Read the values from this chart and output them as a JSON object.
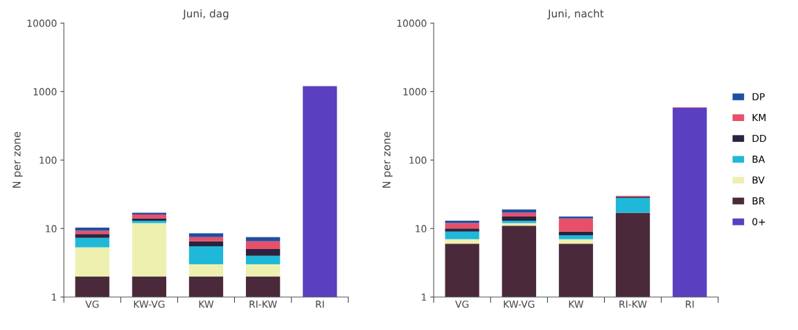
{
  "chart_data": [
    {
      "type": "bar",
      "title": "Juni, dag",
      "ylabel": "N per zone",
      "stacked": true,
      "log": "y",
      "grid": false,
      "categories": [
        "VG",
        "KW-VG",
        "KW",
        "RI-KW",
        "RI"
      ],
      "ylim": [
        1,
        10000
      ],
      "yticks": [
        1,
        10,
        100,
        1000,
        10000
      ],
      "series": [
        {
          "color": "#5a3fc0",
          "values": [
            null,
            null,
            null,
            null,
            1200
          ]
        },
        {
          "color": "#4a2a3a",
          "values": [
            2,
            2,
            2,
            2,
            null
          ]
        },
        {
          "color": "#eef0b0",
          "values": [
            3.3,
            10,
            1,
            1,
            null
          ]
        },
        {
          "color": "#20b8d8",
          "values": [
            2,
            1,
            2.5,
            1,
            null
          ]
        },
        {
          "color": "#2a2440",
          "values": [
            1,
            1,
            1,
            1,
            null
          ]
        },
        {
          "color": "#e8506a",
          "values": [
            1,
            2,
            1,
            1.5,
            null
          ]
        },
        {
          "color": "#1f4fa0",
          "values": [
            1,
            1,
            1,
            1,
            null
          ]
        }
      ]
    },
    {
      "type": "bar",
      "title": "Juni, nacht",
      "ylabel": "N per zone",
      "stacked": true,
      "log": "y",
      "grid": false,
      "legend": "right",
      "categories": [
        "VG",
        "KW-VG",
        "KW",
        "RI-KW",
        "RI"
      ],
      "ylim": [
        1,
        10000
      ],
      "yticks": [
        1,
        10,
        100,
        1000,
        10000
      ],
      "series": [
        {
          "name": "0+",
          "color": "#5a3fc0",
          "values": [
            null,
            null,
            null,
            null,
            580
          ]
        },
        {
          "name": "BR",
          "color": "#4a2a3a",
          "values": [
            6,
            11,
            6,
            17,
            null
          ]
        },
        {
          "name": "BV",
          "color": "#eef0b0",
          "values": [
            1,
            1,
            1,
            null,
            null
          ]
        },
        {
          "name": "BA",
          "color": "#20b8d8",
          "values": [
            2,
            1,
            1,
            11,
            null
          ]
        },
        {
          "name": "DD",
          "color": "#2a2440",
          "values": [
            1,
            2,
            1,
            1,
            null
          ]
        },
        {
          "name": "KM",
          "color": "#e8506a",
          "values": [
            2,
            2,
            5,
            1,
            10
          ]
        },
        {
          "name": "DP",
          "color": "#1f4fa0",
          "values": [
            1,
            2,
            1,
            null,
            null
          ]
        }
      ]
    }
  ]
}
